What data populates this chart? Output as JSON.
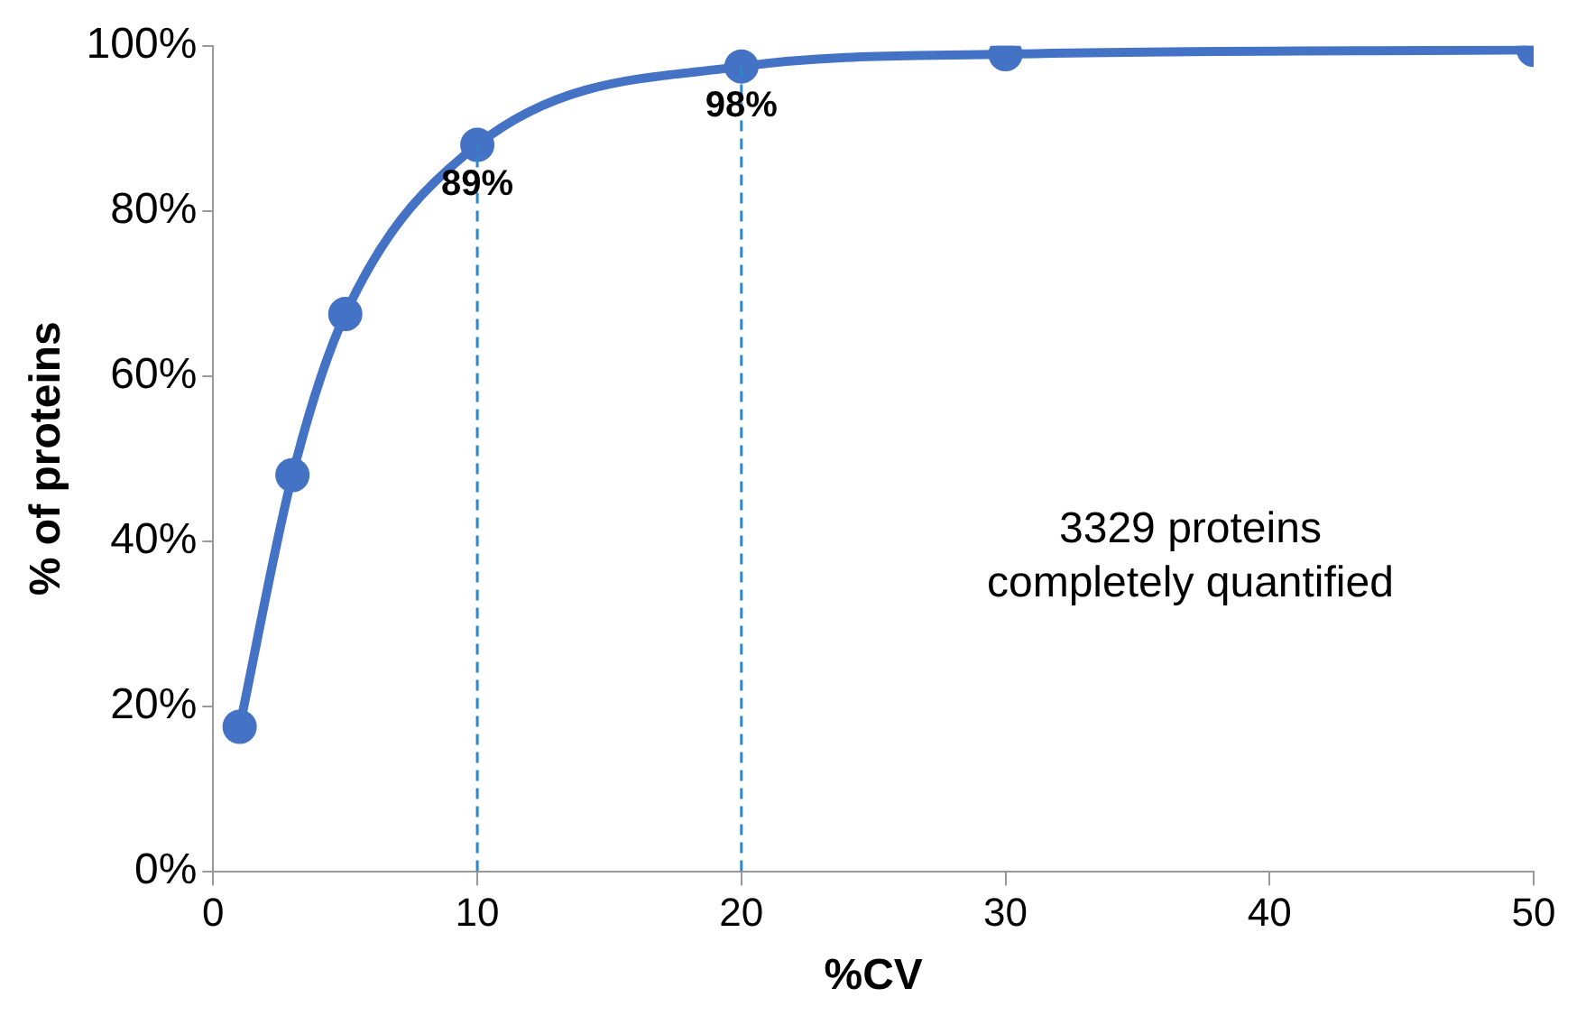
{
  "chart_data": {
    "type": "line",
    "xlabel": "%CV",
    "ylabel": "% of proteins",
    "x": [
      1,
      3,
      5,
      10,
      20,
      30,
      50
    ],
    "series": [
      {
        "color": "#4472c4",
        "values": [
          17.5,
          48,
          67.5,
          88,
          97.5,
          99,
          99.5
        ]
      }
    ],
    "xlim": [
      0,
      50
    ],
    "xticks": [
      0,
      10,
      20,
      30,
      40,
      50
    ],
    "ylim": [
      0,
      100
    ],
    "yticks": [
      {
        "value": 0,
        "label": "0%"
      },
      {
        "value": 20,
        "label": "20%"
      },
      {
        "value": 40,
        "label": "40%"
      },
      {
        "value": 60,
        "label": "60%"
      },
      {
        "value": 80,
        "label": "80%"
      },
      {
        "value": 100,
        "label": "100%"
      }
    ],
    "ref_lines": [
      {
        "axis": "x",
        "value": 10,
        "color": "#2e86c8",
        "line_style": "dashed"
      },
      {
        "axis": "x",
        "value": 20,
        "color": "#2e86c8",
        "line_style": "dashed"
      }
    ],
    "annotations": [
      {
        "text": "89%",
        "x": 10,
        "y": 88
      },
      {
        "text": "98%",
        "x": 20,
        "y": 97.5
      },
      "3329 proteins\ncompletely quantified"
    ],
    "grid": false,
    "legend": false,
    "marker": "circle",
    "line_style": "solid"
  }
}
